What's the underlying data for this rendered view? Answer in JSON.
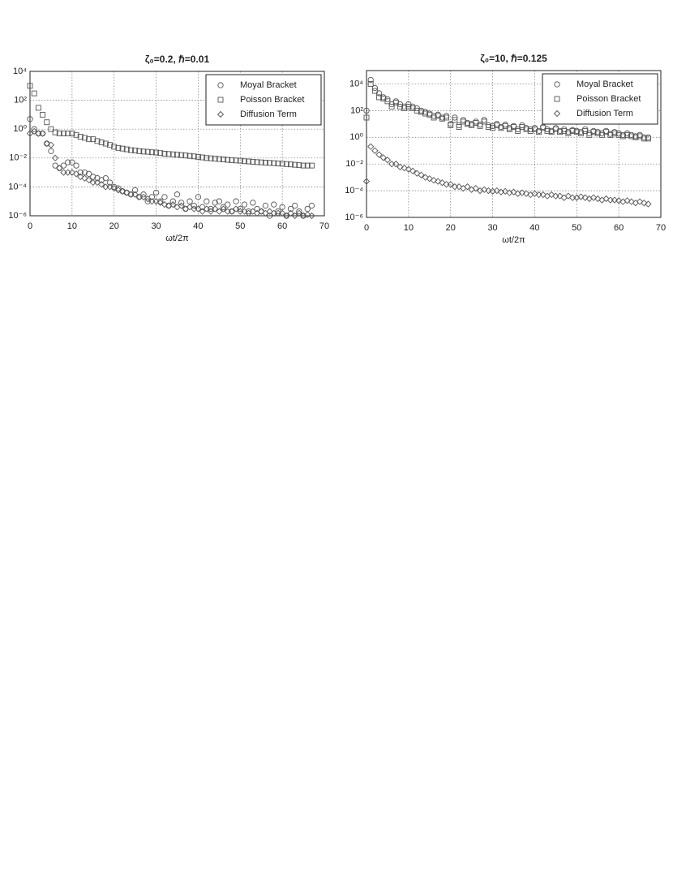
{
  "chart_data": [
    {
      "type": "scatter",
      "title": "ζ₀=0.2, ℏ=0.01",
      "xlabel": "ωt/2π",
      "log_y": true,
      "grid": true,
      "legend": "upper right",
      "xlim": [
        0,
        70
      ],
      "xticks": [
        0,
        10,
        20,
        30,
        40,
        50,
        60,
        70
      ],
      "ylim": [
        1e-06,
        10000
      ],
      "yticks": [
        {
          "value": 1e-06,
          "label": "10⁻⁶"
        },
        {
          "value": 0.0001,
          "label": "10⁻⁴"
        },
        {
          "value": 0.01,
          "label": "10⁻²"
        },
        {
          "value": 1,
          "label": "10⁰"
        },
        {
          "value": 100,
          "label": "10²"
        },
        {
          "value": 10000,
          "label": "10⁴"
        }
      ],
      "x": [
        0,
        1,
        2,
        3,
        4,
        5,
        6,
        7,
        8,
        9,
        10,
        11,
        12,
        13,
        14,
        15,
        16,
        17,
        18,
        19,
        20,
        21,
        22,
        23,
        24,
        25,
        26,
        27,
        28,
        29,
        30,
        31,
        32,
        33,
        34,
        35,
        36,
        37,
        38,
        39,
        40,
        41,
        42,
        43,
        44,
        45,
        46,
        47,
        48,
        49,
        50,
        51,
        52,
        53,
        54,
        55,
        56,
        57,
        58,
        59,
        60,
        61,
        62,
        63,
        64,
        65,
        66,
        67
      ],
      "series": [
        {
          "name": "Moyal Bracket",
          "marker": "circle",
          "color": "#555555",
          "values": [
            5,
            1,
            0.5,
            0.5,
            0.1,
            0.03,
            0.003,
            0.002,
            0.003,
            0.005,
            0.005,
            0.003,
            0.001,
            0.001,
            0.0008,
            0.0005,
            0.0004,
            0.0003,
            0.0004,
            0.0002,
            0.0001,
            8e-05,
            5e-05,
            4e-05,
            3e-05,
            6e-05,
            2e-05,
            3e-05,
            1e-05,
            2e-05,
            4e-05,
            1e-05,
            2e-05,
            5e-06,
            1e-05,
            3e-05,
            8e-06,
            3e-06,
            1e-05,
            5e-06,
            2e-05,
            4e-06,
            1e-05,
            3e-06,
            8e-06,
            1e-05,
            4e-06,
            6e-06,
            2e-06,
            1e-05,
            3e-06,
            6e-06,
            2e-06,
            8e-06,
            3e-06,
            2e-06,
            5e-06,
            1e-06,
            6e-06,
            2e-06,
            4e-06,
            1e-06,
            3e-06,
            5e-06,
            2e-06,
            1e-06,
            3e-06,
            5e-06
          ]
        },
        {
          "name": "Poisson Bracket",
          "marker": "square",
          "color": "#555555",
          "values": [
            1000,
            300,
            30,
            10,
            3,
            1,
            0.6,
            0.5,
            0.5,
            0.5,
            0.5,
            0.4,
            0.3,
            0.25,
            0.2,
            0.2,
            0.15,
            0.12,
            0.1,
            0.08,
            0.06,
            0.05,
            0.045,
            0.04,
            0.035,
            0.033,
            0.03,
            0.028,
            0.027,
            0.025,
            0.024,
            0.022,
            0.02,
            0.019,
            0.018,
            0.017,
            0.016,
            0.015,
            0.014,
            0.013,
            0.012,
            0.011,
            0.01,
            0.0095,
            0.009,
            0.0085,
            0.008,
            0.0075,
            0.007,
            0.0068,
            0.0065,
            0.006,
            0.0058,
            0.0055,
            0.0052,
            0.005,
            0.0048,
            0.0046,
            0.0044,
            0.0042,
            0.004,
            0.0038,
            0.0036,
            0.0034,
            0.0032,
            0.003,
            0.003,
            0.003
          ]
        },
        {
          "name": "Diffusion Term",
          "marker": "diamond",
          "color": "#555555",
          "values": [
            0.5,
            0.7,
            0.5,
            0.5,
            0.1,
            0.08,
            0.01,
            0.002,
            0.001,
            0.001,
            0.001,
            0.0008,
            0.0005,
            0.0004,
            0.0003,
            0.0002,
            0.0002,
            0.00015,
            0.0001,
            0.0001,
            8e-05,
            6e-05,
            5e-05,
            4e-05,
            3e-05,
            3e-05,
            2e-05,
            2e-05,
            1.5e-05,
            1e-05,
            1e-05,
            8e-06,
            6e-06,
            5e-06,
            6e-06,
            4e-06,
            5e-06,
            3e-06,
            4e-06,
            3e-06,
            3e-06,
            2e-06,
            3e-06,
            2e-06,
            3e-06,
            2e-06,
            3e-06,
            2e-06,
            2e-06,
            3e-06,
            2e-06,
            2e-06,
            1.5e-06,
            2e-06,
            1.5e-06,
            2e-06,
            1.5e-06,
            2e-06,
            1.5e-06,
            1.5e-06,
            1.5e-06,
            1e-06,
            1.5e-06,
            1e-06,
            1.5e-06,
            1e-06,
            1.2e-06,
            1e-06
          ]
        }
      ]
    },
    {
      "type": "scatter",
      "title": "ζ₀=10, ℏ=0.125",
      "xlabel": "ωt/2π",
      "log_y": true,
      "grid": true,
      "legend": "upper right",
      "xlim": [
        0,
        70
      ],
      "xticks": [
        0,
        10,
        20,
        30,
        40,
        50,
        60,
        70
      ],
      "ylim": [
        1e-06,
        100000
      ],
      "yticks": [
        {
          "value": 1e-06,
          "label": "10⁻⁶"
        },
        {
          "value": 0.0001,
          "label": "10⁻⁴"
        },
        {
          "value": 0.01,
          "label": "10⁻²"
        },
        {
          "value": 1,
          "label": "10⁰"
        },
        {
          "value": 100,
          "label": "10²"
        },
        {
          "value": 10000,
          "label": "10⁴"
        }
      ],
      "x": [
        0,
        1,
        2,
        3,
        4,
        5,
        6,
        7,
        8,
        9,
        10,
        11,
        12,
        13,
        14,
        15,
        16,
        17,
        18,
        19,
        20,
        21,
        22,
        23,
        24,
        25,
        26,
        27,
        28,
        29,
        30,
        31,
        32,
        33,
        34,
        35,
        36,
        37,
        38,
        39,
        40,
        41,
        42,
        43,
        44,
        45,
        46,
        47,
        48,
        49,
        50,
        51,
        52,
        53,
        54,
        55,
        56,
        57,
        58,
        59,
        60,
        61,
        62,
        63,
        64,
        65,
        66,
        67
      ],
      "series": [
        {
          "name": "Moyal Bracket",
          "marker": "circle",
          "color": "#555555",
          "values": [
            100,
            20000,
            5000,
            2000,
            1000,
            700,
            300,
            500,
            300,
            200,
            300,
            200,
            150,
            100,
            80,
            60,
            40,
            50,
            30,
            40,
            10,
            30,
            8,
            20,
            12,
            10,
            15,
            9,
            20,
            8,
            7,
            10,
            6,
            9,
            5,
            7,
            4,
            8,
            5,
            4,
            5,
            3,
            6,
            4,
            3,
            5,
            3,
            4,
            2.5,
            3.5,
            3,
            2.5,
            4,
            2,
            3,
            2.5,
            2,
            3,
            1.8,
            2.5,
            2,
            1.5,
            2,
            1.5,
            1.2,
            1.5,
            1,
            1
          ]
        },
        {
          "name": "Poisson Bracket",
          "marker": "square",
          "color": "#555555",
          "values": [
            30,
            10000,
            3000,
            1000,
            800,
            500,
            200,
            400,
            200,
            150,
            200,
            150,
            100,
            80,
            60,
            50,
            30,
            40,
            25,
            30,
            8,
            20,
            6,
            15,
            10,
            8,
            12,
            7,
            15,
            6,
            5,
            8,
            5,
            7,
            4,
            6,
            3,
            6,
            4,
            3,
            4,
            2.5,
            5,
            3,
            2.5,
            4,
            2.5,
            3,
            2,
            3,
            2.5,
            2,
            3,
            1.5,
            2.5,
            2,
            1.5,
            2.5,
            1.5,
            2,
            1.5,
            1.2,
            1.5,
            1.2,
            1,
            1.2,
            0.8,
            0.8
          ]
        },
        {
          "name": "Diffusion Term",
          "marker": "diamond",
          "color": "#555555",
          "values": [
            0.0005,
            0.2,
            0.1,
            0.05,
            0.03,
            0.02,
            0.01,
            0.01,
            0.006,
            0.005,
            0.004,
            0.003,
            0.002,
            0.0015,
            0.001,
            0.0008,
            0.0006,
            0.0005,
            0.0004,
            0.0003,
            0.0003,
            0.0002,
            0.0002,
            0.00015,
            0.0002,
            0.00012,
            0.00015,
            0.0001,
            0.00012,
            0.0001,
            9e-05,
            0.0001,
            8e-05,
            9e-05,
            7e-05,
            8e-05,
            6e-05,
            7e-05,
            6e-05,
            5e-05,
            6e-05,
            5e-05,
            5e-05,
            4e-05,
            5e-05,
            4e-05,
            4e-05,
            3e-05,
            4e-05,
            3e-05,
            3e-05,
            3.5e-05,
            3e-05,
            2.5e-05,
            3e-05,
            2.5e-05,
            2e-05,
            2.5e-05,
            2e-05,
            2e-05,
            1.8e-05,
            1.5e-05,
            1.8e-05,
            1.5e-05,
            1.2e-05,
            1.5e-05,
            1.2e-05,
            1e-05
          ]
        }
      ]
    }
  ]
}
